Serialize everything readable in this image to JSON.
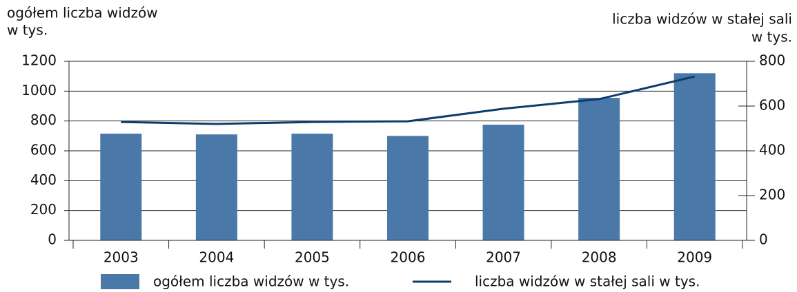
{
  "chart_data": {
    "type": "bar_line",
    "y_label": [
      "ogółem liczba widzów",
      "w tys."
    ],
    "y2_label": [
      "liczba widzów w stałej sali",
      "w tys."
    ],
    "categories": [
      "2003",
      "2004",
      "2005",
      "2006",
      "2007",
      "2008",
      "2009"
    ],
    "series": [
      {
        "name": "ogółem liczba widzów w tys.",
        "color": "#4a78a8",
        "kind": "bar",
        "values": [
          715,
          710,
          715,
          700,
          775,
          955,
          1120
        ]
      },
      {
        "name": "liczba widzów w stałej sali w tys.",
        "color": "#0d3b6e",
        "kind": "line",
        "axis": "y2",
        "values": [
          529,
          520,
          529,
          532,
          588,
          631,
          732
        ]
      }
    ],
    "ylim": [
      0,
      1200
    ],
    "yticks": [
      0,
      200,
      400,
      600,
      800,
      1000,
      1200
    ],
    "y2lim": [
      0,
      800
    ],
    "y2ticks": [
      0,
      200,
      400,
      600,
      800
    ],
    "grid": true
  }
}
